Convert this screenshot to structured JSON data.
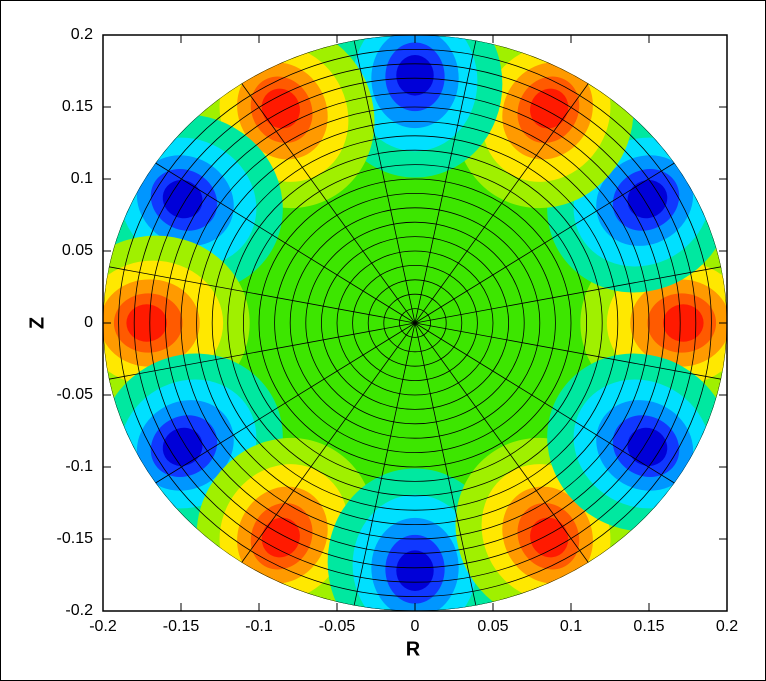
{
  "chart_data": {
    "type": "contour",
    "xlabel": "R",
    "ylabel": "Z",
    "xlim": [
      -0.2,
      0.2
    ],
    "ylim": [
      -0.2,
      0.2
    ],
    "xticks": [
      -0.2,
      -0.15,
      -0.1,
      -0.05,
      0,
      0.05,
      0.1,
      0.15,
      0.2
    ],
    "yticks": [
      -0.2,
      -0.15,
      -0.1,
      -0.05,
      0,
      0.05,
      0.1,
      0.15,
      0.2
    ],
    "colormap": [
      "#0000d8",
      "#1038ff",
      "#0096ff",
      "#00e0ff",
      "#00e8a0",
      "#3de600",
      "#a0f000",
      "#ffe800",
      "#ff9a00",
      "#ff5a00",
      "#ff1a00"
    ]
  }
}
